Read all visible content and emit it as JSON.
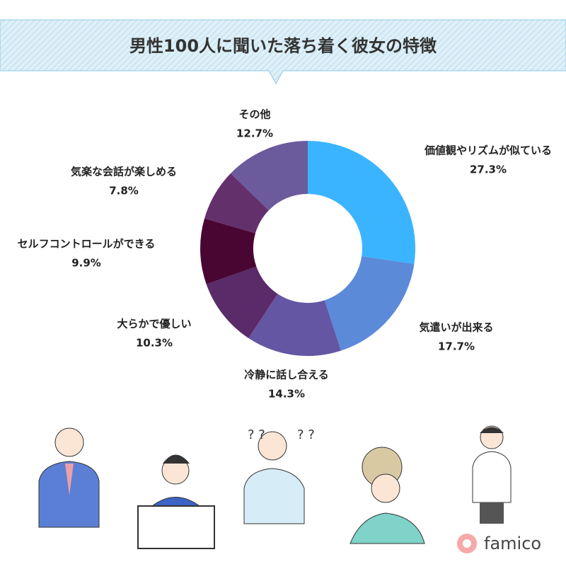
{
  "chart_data": {
    "type": "donut",
    "title": "男性100人に聞いた落ち着く彼女の特徴",
    "categories": [
      "価値観やリズムが似ている",
      "気遣いが出来る",
      "冷静に話し合える",
      "大らかで優しい",
      "セルフコントロールができる",
      "気楽な会話が楽しめる",
      "その他"
    ],
    "values": [
      27.3,
      17.7,
      14.3,
      10.3,
      9.9,
      7.8,
      12.7
    ],
    "value_labels": [
      "27.3%",
      "17.7%",
      "14.3%",
      "10.3%",
      "9.9%",
      "7.8%",
      "12.7%"
    ],
    "colors": [
      "#3bb4ff",
      "#5b8ad9",
      "#6556a3",
      "#5a2b68",
      "#4a0633",
      "#64306c",
      "#6b5a9c"
    ]
  },
  "brand": "famico"
}
